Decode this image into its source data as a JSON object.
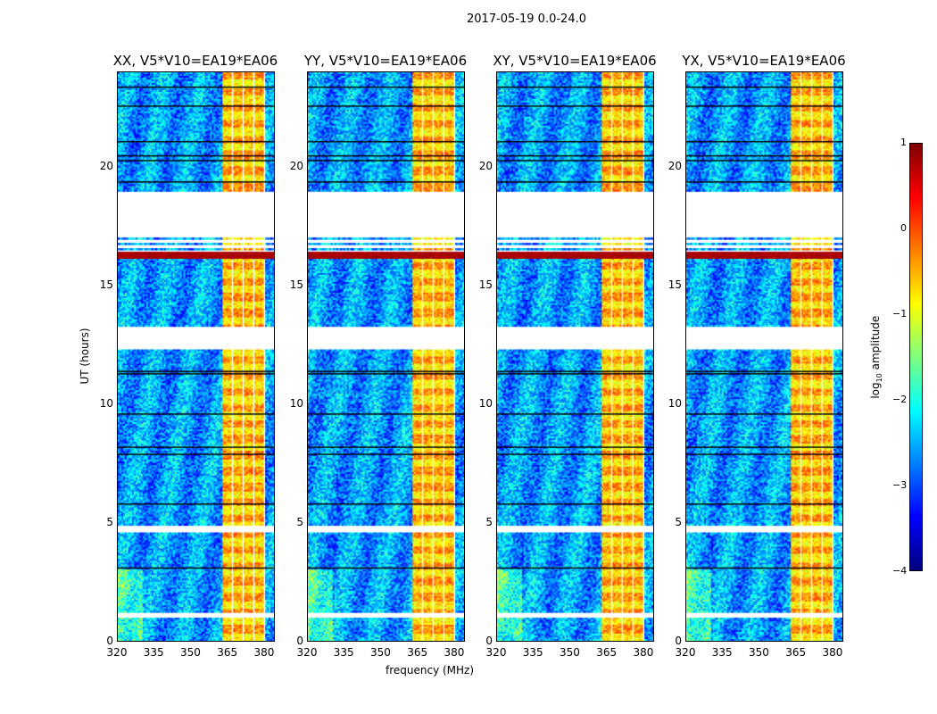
{
  "chart_data": {
    "type": "heatmap",
    "title": "2017-05-19 0.0-24.0",
    "xlabel": "frequency (MHz)",
    "ylabel": "UT (hours)",
    "xlim": [
      320,
      384.4
    ],
    "ylim": [
      0,
      24
    ],
    "x_ticks": [
      "320",
      "335",
      "350",
      "365",
      "380"
    ],
    "y_ticks": [
      "0",
      "5",
      "10",
      "15",
      "20"
    ],
    "panels": [
      {
        "title": "XX, V5*V10=EA19*EA06"
      },
      {
        "title": "YY, V5*V10=EA19*EA06"
      },
      {
        "title": "XY, V5*V10=EA19*EA06"
      },
      {
        "title": "YX, V5*V10=EA19*EA06"
      }
    ],
    "colorbar": {
      "label_main": "log",
      "label_sub": "10",
      "label_rest": " amplitude",
      "range": [
        -4,
        1
      ],
      "ticks": [
        "1",
        "0",
        "−1",
        "−2",
        "−3",
        "−4"
      ],
      "colormap": "jet"
    },
    "background_level": -2.6,
    "rfi_band_mhz": [
      363,
      381
    ],
    "rfi_level": -0.5,
    "blank_hours": [
      [
        17.1,
        19.0
      ],
      [
        12.3,
        13.3
      ],
      [
        4.6,
        4.85
      ],
      [
        1.0,
        1.2
      ]
    ],
    "saturated_hours": [
      16.1,
      16.4
    ],
    "flagged_rows_hours": [
      23.4,
      22.6,
      21.1,
      20.5,
      20.3,
      19.4,
      11.4,
      11.3,
      9.6,
      8.2,
      7.9,
      5.8,
      3.1
    ]
  }
}
